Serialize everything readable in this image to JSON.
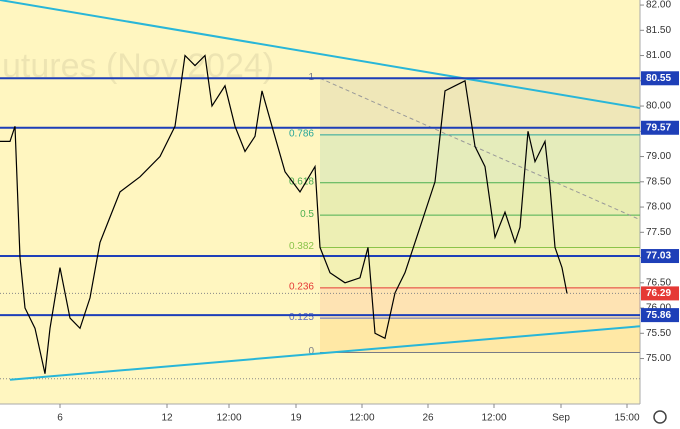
{
  "chart_data": {
    "type": "line",
    "watermark": "utures (Nov 2024)",
    "color": "#000000",
    "x": [
      0,
      10,
      15,
      20,
      25,
      35,
      45,
      50,
      60,
      70,
      80,
      90,
      100,
      110,
      120,
      140,
      160,
      175,
      185,
      195,
      205,
      212,
      225,
      235,
      245,
      255,
      262,
      272,
      285,
      300,
      315,
      320,
      330,
      345,
      360,
      368,
      375,
      385,
      395,
      405,
      420,
      435,
      445,
      455,
      465,
      475,
      485,
      495,
      505,
      515,
      520,
      528,
      535,
      545,
      550,
      555,
      562,
      567
    ],
    "values": [
      79.3,
      79.3,
      79.6,
      77.0,
      76.0,
      75.6,
      74.7,
      75.6,
      76.8,
      75.8,
      75.6,
      76.2,
      77.3,
      77.8,
      78.3,
      78.6,
      79.0,
      79.6,
      81.0,
      80.8,
      81.0,
      80.0,
      80.4,
      79.6,
      79.1,
      79.4,
      80.3,
      79.6,
      78.7,
      78.3,
      78.8,
      77.2,
      76.7,
      76.5,
      76.6,
      77.2,
      75.5,
      75.4,
      76.3,
      76.7,
      77.6,
      78.5,
      80.3,
      80.4,
      80.5,
      79.2,
      78.8,
      77.4,
      77.9,
      77.3,
      77.6,
      79.5,
      78.9,
      79.3,
      78.4,
      77.2,
      76.8,
      76.29
    ],
    "xlim": [
      0,
      640
    ],
    "ylim": [
      74.1,
      82.1
    ],
    "xticks": [
      {
        "value": 60,
        "label": "6"
      },
      {
        "value": 167,
        "label": "12"
      },
      {
        "value": 229,
        "label": "12:00"
      },
      {
        "value": 296,
        "label": "19"
      },
      {
        "value": 362,
        "label": "12:00"
      },
      {
        "value": 428,
        "label": "26"
      },
      {
        "value": 494,
        "label": "12:00"
      },
      {
        "value": 561,
        "label": "Sep"
      },
      {
        "value": 627,
        "label": "15:00"
      }
    ],
    "yticks": [
      {
        "value": 82,
        "label": "82.00"
      },
      {
        "value": 81.5,
        "label": "81.50"
      },
      {
        "value": 81,
        "label": "81.00"
      },
      {
        "value": 80.5,
        "label": "80.50"
      },
      {
        "value": 80,
        "label": "80.00"
      },
      {
        "value": 79.5,
        "label": "79.50"
      },
      {
        "value": 79,
        "label": "79.00"
      },
      {
        "value": 78.5,
        "label": "78.50"
      },
      {
        "value": 78,
        "label": "78.00"
      },
      {
        "value": 77.5,
        "label": "77.50"
      },
      {
        "value": 77,
        "label": "77.00"
      },
      {
        "value": 76.5,
        "label": "76.50"
      },
      {
        "value": 76,
        "label": "76.00"
      },
      {
        "value": 75.5,
        "label": "75.50"
      },
      {
        "value": 75,
        "label": "75.00"
      }
    ],
    "price_lines": [
      80.55,
      79.57,
      77.03,
      75.86
    ],
    "price_line_color": "#1e3fb8",
    "current_price": 76.29,
    "current_price_color": "#e53935",
    "dotted_level": 74.6,
    "fib_start_x": 320,
    "fib": [
      {
        "ratio": 1,
        "price": 80.55,
        "color": "#787b86",
        "fill": "rgba(120,123,134,0.12)"
      },
      {
        "ratio": 0.786,
        "price": 79.43,
        "color": "#26a69a",
        "fill": "rgba(38,166,154,0.12)"
      },
      {
        "ratio": 0.618,
        "price": 78.48,
        "color": "#4caf50",
        "fill": "rgba(76,175,80,0.12)"
      },
      {
        "ratio": 0.5,
        "price": 77.84,
        "color": "#4caf50",
        "fill": "rgba(76,175,80,0.10)"
      },
      {
        "ratio": 0.382,
        "price": 77.2,
        "color": "#8bc34a",
        "fill": "rgba(139,195,74,0.10)"
      },
      {
        "ratio": 0.236,
        "price": 76.4,
        "color": "#e53935",
        "fill": "rgba(242,54,69,0.10)"
      },
      {
        "ratio": 0.125,
        "price": 75.8,
        "color": "#5c6bc0",
        "fill": "rgba(255,152,0,0.14)"
      },
      {
        "ratio": 0,
        "price": 75.12,
        "color": "#787b86",
        "fill": "rgba(255,152,0,0.16)"
      }
    ],
    "trendlines": [
      {
        "x": [
          0,
          640
        ],
        "values": [
          82.1,
          79.96
        ],
        "color": "#29b6d8",
        "dashed": false
      },
      {
        "x": [
          10,
          640
        ],
        "values": [
          74.58,
          75.64
        ],
        "color": "#29b6d8",
        "dashed": false
      },
      {
        "x": [
          320,
          640
        ],
        "values": [
          80.55,
          77.75
        ],
        "color": "#999999",
        "dashed": true
      }
    ]
  }
}
